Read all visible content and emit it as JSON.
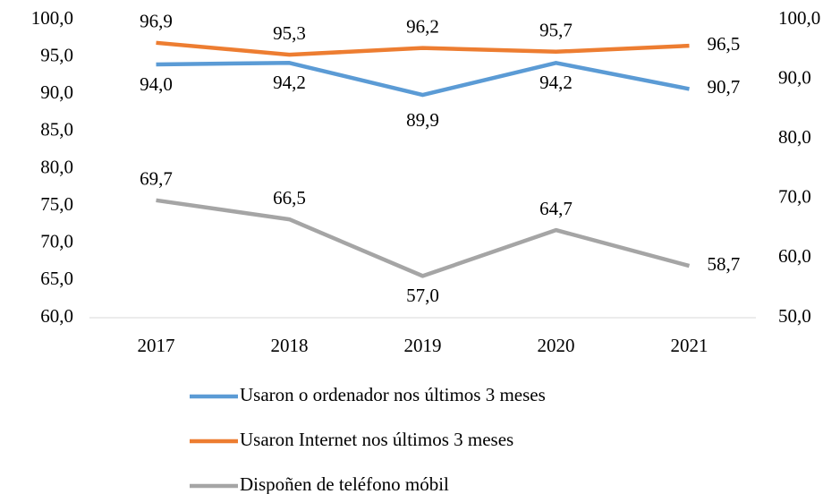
{
  "chart_data": {
    "type": "line",
    "categories": [
      "2017",
      "2018",
      "2019",
      "2020",
      "2021"
    ],
    "ylim": [
      60,
      100
    ],
    "yticks": [
      {
        "value": 60,
        "label": "60,0"
      },
      {
        "value": 65,
        "label": "65,0"
      },
      {
        "value": 70,
        "label": "70,0"
      },
      {
        "value": 75,
        "label": "75,0"
      },
      {
        "value": 80,
        "label": "80,0"
      },
      {
        "value": 85,
        "label": "85,0"
      },
      {
        "value": 90,
        "label": "90,0"
      },
      {
        "value": 95,
        "label": "95,0"
      },
      {
        "value": 100,
        "label": "100,0"
      }
    ],
    "y2lim": [
      50,
      100
    ],
    "y2ticks": [
      {
        "value": 50,
        "label": "50,0"
      },
      {
        "value": 60,
        "label": "60,0"
      },
      {
        "value": 70,
        "label": "70,0"
      },
      {
        "value": 80,
        "label": "80,0"
      },
      {
        "value": 90,
        "label": "90,0"
      },
      {
        "value": 100,
        "label": "100,0"
      }
    ],
    "grid": false,
    "legend": "bottom",
    "series": [
      {
        "name": "Usaron o ordenador nos últimos 3 meses",
        "color": "#5b9bd5",
        "axis": "y",
        "values": [
          94.0,
          94.2,
          89.9,
          94.2,
          90.7
        ],
        "value_labels": [
          "94,0",
          "94,2",
          "89,9",
          "94,2",
          "90,7"
        ]
      },
      {
        "name": "Usaron Internet nos últimos 3 meses",
        "color": "#ed7d31",
        "axis": "y",
        "values": [
          96.9,
          95.3,
          96.2,
          95.7,
          96.5
        ],
        "value_labels": [
          "96,9",
          "95,3",
          "96,2",
          "95,7",
          "96,5"
        ]
      },
      {
        "name": "Dispoñen de teléfono móbil",
        "color": "#a5a5a5",
        "axis": "y2",
        "values": [
          69.7,
          66.5,
          57.0,
          64.7,
          58.7
        ],
        "value_labels": [
          "69,7",
          "66,5",
          "57,0",
          "64,7",
          "58,7"
        ]
      }
    ]
  }
}
